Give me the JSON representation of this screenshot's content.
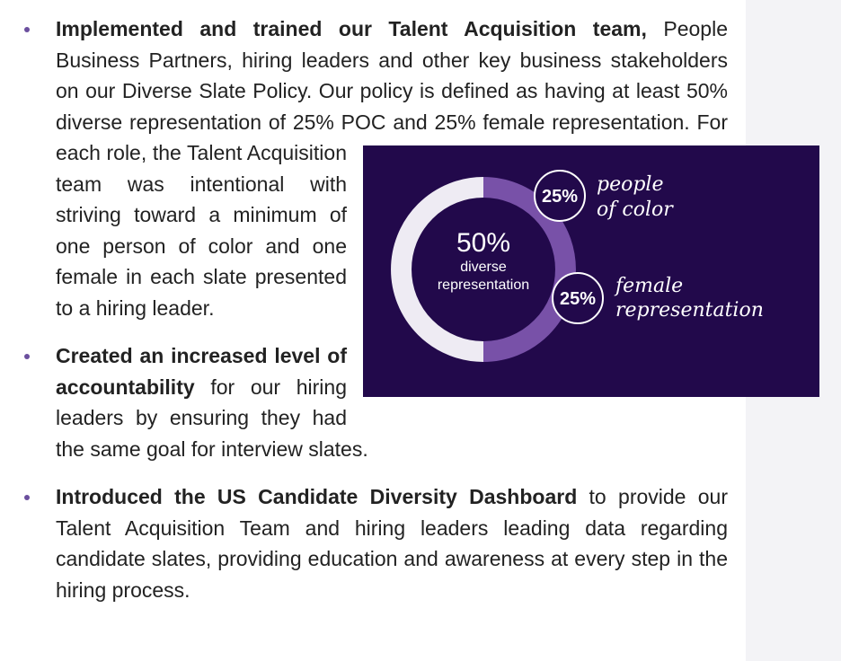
{
  "bullets": [
    {
      "bold": "Implemented and trained our Talent Acquisition team,",
      "text": "People Business Partners, hiring leaders and other key business stakeholders on our Diverse Slate Policy.  Our policy is defined as having at least 50% diverse representation of 25% POC and 25% female representation. For each role, the Talent Acquisition team was intentional with striving toward a minimum of one person of color and one female in each slate presented to a hiring leader."
    },
    {
      "bold": "Created an increased level of accountability",
      "text": "for our hiring leaders by ensuring they had the same goal for interview slates."
    },
    {
      "bold": "Introduced the US Candidate Diversity Dashboard",
      "text": "to provide our Talent Acquisition Team and hiring leaders leading data regarding candidate slates, providing education and awareness at every step in the hiring process."
    }
  ],
  "infographic": {
    "total": "50%",
    "total_label": [
      "diverse",
      "representation"
    ],
    "segments": [
      {
        "value": "25%",
        "label": [
          "people",
          "of color"
        ]
      },
      {
        "value": "25%",
        "label": [
          "female",
          "representation"
        ]
      }
    ]
  }
}
